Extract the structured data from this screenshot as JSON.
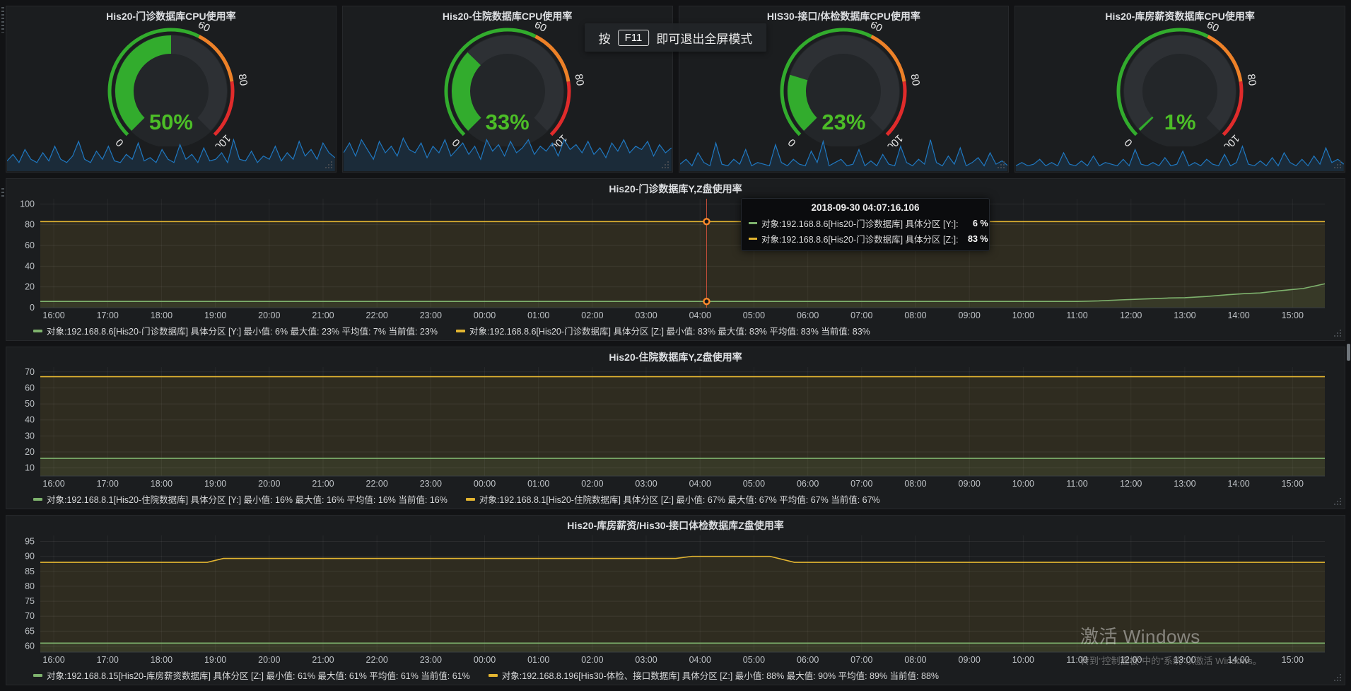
{
  "notification": {
    "prefix": "按",
    "key": "F11",
    "suffix": "即可退出全屏模式"
  },
  "watermark": {
    "line1": "激活 Windows",
    "line2": "转到\"控制面板\"中的\"系统\"以激活 Windows。"
  },
  "colors": {
    "accent_green": "#7eb26d",
    "accent_yellow": "#e3b531",
    "gauge_green": "#32ac2d",
    "gauge_orange": "#ed8128",
    "gauge_red": "#e02b2b",
    "gauge_value_text": "#4cbe27",
    "spark_blue": "#1f78c1",
    "crosshair_red": "#d2523c",
    "marker_orange": "#ff8b2b"
  },
  "gauges": [
    {
      "type": "gauge",
      "title": "His20-门诊数据库CPU使用率",
      "value": 50,
      "value_label": "50%",
      "min": 0,
      "max": 100,
      "thresholds": [
        60,
        80
      ],
      "axis_labels": [
        "0",
        "60",
        "80",
        "100"
      ],
      "spark": [
        0.25,
        0.45,
        0.2,
        0.6,
        0.3,
        0.2,
        0.5,
        0.25,
        0.7,
        0.3,
        0.2,
        0.4,
        0.85,
        0.3,
        0.2,
        0.55,
        0.3,
        0.7,
        0.25,
        0.2,
        0.45,
        0.3,
        0.8,
        0.25,
        0.35,
        0.2,
        0.6,
        0.3,
        0.2,
        0.75,
        0.3,
        0.45,
        0.2,
        0.65,
        0.25,
        0.3,
        0.5,
        0.2,
        0.9,
        0.3,
        0.25,
        0.55,
        0.2,
        0.4,
        0.3,
        0.7,
        0.25,
        0.5,
        0.3,
        0.85,
        0.4,
        0.6,
        0.3,
        0.8,
        0.5,
        0.35
      ]
    },
    {
      "type": "gauge",
      "title": "His20-住院数据库CPU使用率",
      "value": 33,
      "value_label": "33%",
      "min": 0,
      "max": 100,
      "thresholds": [
        60,
        80
      ],
      "axis_labels": [
        "0",
        "60",
        "80",
        "100"
      ],
      "spark": [
        0.5,
        0.8,
        0.4,
        0.9,
        0.6,
        0.3,
        0.85,
        0.5,
        0.7,
        0.4,
        0.95,
        0.6,
        0.5,
        0.8,
        0.35,
        0.7,
        0.5,
        0.9,
        0.4,
        0.6,
        0.8,
        0.45,
        0.7,
        0.3,
        0.9,
        0.55,
        0.75,
        0.4,
        0.85,
        0.5,
        0.65,
        0.9,
        0.45,
        0.7,
        0.55,
        0.8,
        0.4,
        0.9,
        0.6,
        0.75,
        0.5,
        0.85,
        0.45,
        0.65,
        0.35,
        0.8,
        0.55,
        0.9,
        0.5,
        0.7,
        0.6,
        0.85,
        0.4,
        0.75,
        0.5,
        0.65
      ]
    },
    {
      "type": "gauge",
      "title": "HIS30-接口/体检数据库CPU使用率",
      "value": 23,
      "value_label": "23%",
      "min": 0,
      "max": 100,
      "thresholds": [
        60,
        80
      ],
      "axis_labels": [
        "0",
        "60",
        "80",
        "100"
      ],
      "spark": [
        0.15,
        0.3,
        0.1,
        0.5,
        0.2,
        0.1,
        0.8,
        0.15,
        0.1,
        0.3,
        0.15,
        0.6,
        0.1,
        0.2,
        0.15,
        0.1,
        0.75,
        0.2,
        0.1,
        0.3,
        0.15,
        0.1,
        0.55,
        0.2,
        0.85,
        0.1,
        0.2,
        0.3,
        0.1,
        0.15,
        0.6,
        0.1,
        0.25,
        0.1,
        0.45,
        0.15,
        0.1,
        0.7,
        0.2,
        0.1,
        0.3,
        0.15,
        0.9,
        0.2,
        0.1,
        0.4,
        0.15,
        0.65,
        0.1,
        0.2,
        0.35,
        0.1,
        0.5,
        0.15,
        0.25,
        0.1
      ]
    },
    {
      "type": "gauge",
      "title": "His20-库房薪资数据库CPU使用率",
      "value": 1,
      "value_label": "1%",
      "min": 0,
      "max": 100,
      "thresholds": [
        60,
        80
      ],
      "axis_labels": [
        "0",
        "60",
        "80",
        "100"
      ],
      "spark": [
        0.1,
        0.2,
        0.1,
        0.15,
        0.3,
        0.1,
        0.2,
        0.1,
        0.5,
        0.15,
        0.1,
        0.25,
        0.1,
        0.4,
        0.1,
        0.2,
        0.15,
        0.1,
        0.3,
        0.1,
        0.6,
        0.15,
        0.1,
        0.2,
        0.1,
        0.35,
        0.1,
        0.15,
        0.55,
        0.1,
        0.2,
        0.1,
        0.3,
        0.15,
        0.1,
        0.45,
        0.1,
        0.2,
        0.7,
        0.15,
        0.1,
        0.25,
        0.1,
        0.35,
        0.1,
        0.5,
        0.2,
        0.1,
        0.3,
        0.1,
        0.4,
        0.15,
        0.65,
        0.2,
        0.3,
        0.15
      ]
    }
  ],
  "chart_data": [
    {
      "type": "line",
      "title": "His20-门诊数据库Y,Z盘使用率",
      "ylim": [
        0,
        105
      ],
      "yticks": [
        0,
        20,
        40,
        60,
        80,
        100
      ],
      "xdomain": [
        -0.25,
        23.6
      ],
      "xticks": [
        "16:00",
        "17:00",
        "18:00",
        "19:00",
        "20:00",
        "21:00",
        "22:00",
        "23:00",
        "00:00",
        "01:00",
        "02:00",
        "03:00",
        "04:00",
        "05:00",
        "06:00",
        "07:00",
        "08:00",
        "09:00",
        "10:00",
        "11:00",
        "12:00",
        "13:00",
        "14:00",
        "15:00"
      ],
      "series": [
        {
          "name": "具体分区 [Z:]",
          "color": "yellow",
          "points": [
            [
              -0.25,
              83
            ],
            [
              23.6,
              83
            ]
          ]
        },
        {
          "name": "具体分区 [Y:]",
          "color": "green",
          "points": [
            [
              -0.25,
              6
            ],
            [
              19.0,
              6
            ],
            [
              19.4,
              6.5
            ],
            [
              19.8,
              7.5
            ],
            [
              20.3,
              8.5
            ],
            [
              20.7,
              9.3
            ],
            [
              21.0,
              9.6
            ],
            [
              21.4,
              10.8
            ],
            [
              21.8,
              12.5
            ],
            [
              22.1,
              13.5
            ],
            [
              22.4,
              14.2
            ],
            [
              22.7,
              16
            ],
            [
              23.0,
              17.5
            ],
            [
              23.2,
              18.5
            ],
            [
              23.6,
              23
            ]
          ]
        }
      ],
      "crosshair": {
        "t": 12.121,
        "marker_values": [
          83,
          6
        ]
      },
      "legend": [
        {
          "color": "green",
          "text": "对象:192.168.8.6[His20-门诊数据库] 具体分区 [Y:]  最小值: 6%  最大值: 23%  平均值: 7%  当前值: 23%"
        },
        {
          "color": "yellow",
          "text": "对象:192.168.8.6[His20-门诊数据库] 具体分区 [Z:]  最小值: 83%  最大值: 83%  平均值: 83%  当前值: 83%"
        }
      ]
    },
    {
      "type": "line",
      "title": "His20-住院数据库Y,Z盘使用率",
      "ylim": [
        5,
        73
      ],
      "yticks": [
        10,
        20,
        30,
        40,
        50,
        60,
        70
      ],
      "xdomain": [
        -0.25,
        23.6
      ],
      "xticks": [
        "16:00",
        "17:00",
        "18:00",
        "19:00",
        "20:00",
        "21:00",
        "22:00",
        "23:00",
        "00:00",
        "01:00",
        "02:00",
        "03:00",
        "04:00",
        "05:00",
        "06:00",
        "07:00",
        "08:00",
        "09:00",
        "10:00",
        "11:00",
        "12:00",
        "13:00",
        "14:00",
        "15:00"
      ],
      "series": [
        {
          "name": "具体分区 [Z:]",
          "color": "yellow",
          "points": [
            [
              -0.25,
              67
            ],
            [
              23.6,
              67
            ]
          ]
        },
        {
          "name": "具体分区 [Y:]",
          "color": "green",
          "points": [
            [
              -0.25,
              16
            ],
            [
              23.6,
              16
            ]
          ]
        }
      ],
      "legend": [
        {
          "color": "green",
          "text": "对象:192.168.8.1[His20-住院数据库] 具体分区 [Y:]  最小值: 16%  最大值: 16%  平均值: 16%  当前值: 16%"
        },
        {
          "color": "yellow",
          "text": "对象:192.168.8.1[His20-住院数据库] 具体分区 [Z:]  最小值: 67%  最大值: 67%  平均值: 67%  当前值: 67%"
        }
      ]
    },
    {
      "type": "line",
      "title": "His20-库房薪资/His30-接口体检数据库Z盘使用率",
      "ylim": [
        58,
        97
      ],
      "yticks": [
        60,
        65,
        70,
        75,
        80,
        85,
        90,
        95
      ],
      "xdomain": [
        -0.25,
        23.6
      ],
      "xticks": [
        "16:00",
        "17:00",
        "18:00",
        "19:00",
        "20:00",
        "21:00",
        "22:00",
        "23:00",
        "00:00",
        "01:00",
        "02:00",
        "03:00",
        "04:00",
        "05:00",
        "06:00",
        "07:00",
        "08:00",
        "09:00",
        "10:00",
        "11:00",
        "12:00",
        "13:00",
        "14:00",
        "15:00"
      ],
      "series": [
        {
          "name": "具体分区 [Z:] (His30)",
          "color": "yellow",
          "points": [
            [
              -0.25,
              88
            ],
            [
              2.85,
              88
            ],
            [
              3.15,
              89.3
            ],
            [
              11.55,
              89.3
            ],
            [
              11.85,
              90
            ],
            [
              13.3,
              90
            ],
            [
              13.75,
              88
            ],
            [
              23.6,
              88
            ]
          ]
        },
        {
          "name": "具体分区 [Z:] (His20)",
          "color": "green",
          "points": [
            [
              -0.25,
              61
            ],
            [
              23.6,
              61
            ]
          ]
        }
      ],
      "legend": [
        {
          "color": "green",
          "text": "对象:192.168.8.15[His20-库房薪资数据库] 具体分区 [Z:]  最小值: 61%  最大值: 61%  平均值: 61%  当前值: 61%"
        },
        {
          "color": "yellow",
          "text": "对象:192.168.8.196[His30-体检、接口数据库] 具体分区 [Z:]  最小值: 88%  最大值: 90%  平均值: 89%  当前值: 88%"
        }
      ]
    }
  ],
  "tooltip": {
    "time": "2018-09-30 04:07:16.106",
    "rows": [
      {
        "color": "green",
        "label": "对象:192.168.8.6[His20-门诊数据库] 具体分区 [Y:]:",
        "value": "6 %"
      },
      {
        "color": "yellow",
        "label": "对象:192.168.8.6[His20-门诊数据库] 具体分区 [Z:]:",
        "value": "83 %"
      }
    ]
  }
}
